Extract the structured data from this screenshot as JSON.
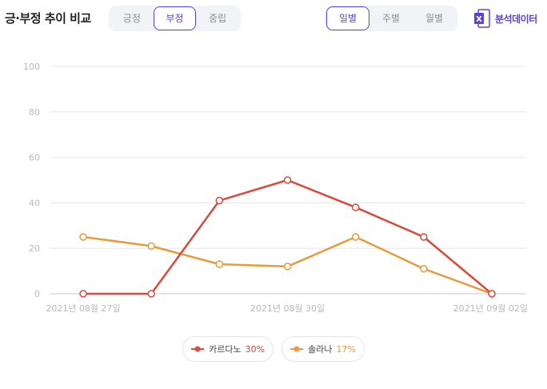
{
  "title": "긍·부정 추이 비교",
  "sentiment_tabs": [
    {
      "label": "긍정",
      "active": false
    },
    {
      "label": "부정",
      "active": true
    },
    {
      "label": "중립",
      "active": false
    }
  ],
  "period_tabs": [
    {
      "label": "일별",
      "active": true
    },
    {
      "label": "주별",
      "active": false
    },
    {
      "label": "월별",
      "active": false
    }
  ],
  "analysis_button": {
    "label": "분석데이터",
    "icon": "excel-icon",
    "color": "#5b43d6"
  },
  "colors": {
    "accent": "#5b43d6",
    "series1": "#d94b3b",
    "series2": "#e89a3c"
  },
  "chart_data": {
    "type": "line",
    "x": [
      "2021-08-27",
      "2021-08-28",
      "2021-08-29",
      "2021-08-30",
      "2021-08-31",
      "2021-09-01",
      "2021-09-02"
    ],
    "x_tick_labels": [
      "2021년 08월 27일",
      "2021년 08월 30일",
      "2021년 09월 02일"
    ],
    "y_ticks": [
      0,
      20,
      40,
      60,
      80,
      100
    ],
    "ylim": [
      0,
      100
    ],
    "grid": true,
    "legend_position": "bottom",
    "series": [
      {
        "name": "카르다노",
        "share": "30%",
        "color": "#d94b3b",
        "values": [
          0,
          0,
          41,
          50,
          38,
          25,
          0
        ]
      },
      {
        "name": "솔라나",
        "share": "17%",
        "color": "#e89a3c",
        "values": [
          25,
          21,
          13,
          12,
          25,
          11,
          0
        ]
      }
    ]
  }
}
